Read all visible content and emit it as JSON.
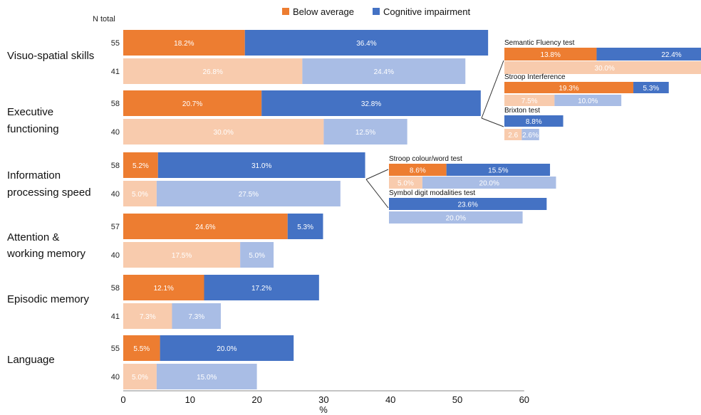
{
  "colors": {
    "below_avg": "#ED7D31",
    "cog_imp": "#4472C4",
    "below_avg_light": "#F8CBAD",
    "cog_imp_light": "#A9BDE5",
    "axis": "#888888"
  },
  "legend": [
    "Below average",
    "Cognitive impairment"
  ],
  "n_total_label": "N total",
  "x_axis_label": "%",
  "x_ticks": [
    "0",
    "10",
    "20",
    "30",
    "40",
    "50",
    "60"
  ],
  "chart_data": {
    "type": "bar",
    "stacked": true,
    "orientation": "horizontal",
    "xlabel": "%",
    "xlim": [
      0,
      60
    ],
    "series_names": [
      "Below average",
      "Cognitive impairment"
    ],
    "domains": [
      {
        "name": "Visuo-spatial skills",
        "rows": [
          {
            "n": "55",
            "below": 18.2,
            "below_label": "18.2%",
            "cog": 36.4,
            "cog_label": "36.4%"
          },
          {
            "n": "41",
            "below": 26.8,
            "below_label": "26.8%",
            "cog": 24.4,
            "cog_label": "24.4%"
          }
        ]
      },
      {
        "name": "Executive functioning",
        "rows": [
          {
            "n": "58",
            "below": 20.7,
            "below_label": "20.7%",
            "cog": 32.8,
            "cog_label": "32.8%"
          },
          {
            "n": "40",
            "below": 30.0,
            "below_label": "30.0%",
            "cog": 12.5,
            "cog_label": "12.5%"
          }
        ]
      },
      {
        "name": "Information processing speed",
        "rows": [
          {
            "n": "58",
            "below": 5.2,
            "below_label": "5.2%",
            "cog": 31.0,
            "cog_label": "31.0%"
          },
          {
            "n": "40",
            "below": 5.0,
            "below_label": "5.0%",
            "cog": 27.5,
            "cog_label": "27.5%"
          }
        ]
      },
      {
        "name": "Attention & working memory",
        "rows": [
          {
            "n": "57",
            "below": 24.6,
            "below_label": "24.6%",
            "cog": 5.3,
            "cog_label": "5.3%"
          },
          {
            "n": "40",
            "below": 17.5,
            "below_label": "17.5%",
            "cog": 5.0,
            "cog_label": "5.0%"
          }
        ]
      },
      {
        "name": "Episodic memory",
        "rows": [
          {
            "n": "58",
            "below": 12.1,
            "below_label": "12.1%",
            "cog": 17.2,
            "cog_label": "17.2%"
          },
          {
            "n": "41",
            "below": 7.3,
            "below_label": "7.3%",
            "cog": 7.3,
            "cog_label": "7.3%"
          }
        ]
      },
      {
        "name": "Language",
        "rows": [
          {
            "n": "55",
            "below": 5.5,
            "below_label": "5.5%",
            "cog": 20.0,
            "cog_label": "20.0%"
          },
          {
            "n": "40",
            "below": 5.0,
            "below_label": "5.0%",
            "cog": 15.0,
            "cog_label": "15.0%"
          }
        ]
      }
    ],
    "insets": [
      {
        "title": "Semantic Fluency test",
        "rows": [
          {
            "below": 13.8,
            "below_label": "13.8%",
            "cog": 22.4,
            "cog_label": "22.4%"
          },
          {
            "below": 30.0,
            "below_label": "30.0%",
            "cog": 0,
            "cog_label": ""
          }
        ]
      },
      {
        "title": "Stroop Interference",
        "rows": [
          {
            "below": 19.3,
            "below_label": "19.3%",
            "cog": 5.3,
            "cog_label": "5.3%"
          },
          {
            "below": 7.5,
            "below_label": "7.5%",
            "cog": 10.0,
            "cog_label": "10.0%"
          }
        ]
      },
      {
        "title": "Brixton test",
        "rows": [
          {
            "below": 0,
            "below_label": "",
            "cog": 8.8,
            "cog_label": "8.8%"
          },
          {
            "below": 2.6,
            "below_label": "2.6",
            "cog": 2.6,
            "cog_label": "2.6%"
          }
        ]
      },
      {
        "title": "Stroop colour/word test",
        "rows": [
          {
            "below": 8.6,
            "below_label": "8.6%",
            "cog": 15.5,
            "cog_label": "15.5%"
          },
          {
            "below": 5.0,
            "below_label": "5.0%",
            "cog": 20.0,
            "cog_label": "20.0%"
          }
        ]
      },
      {
        "title": "Symbol digit modalities test",
        "rows": [
          {
            "below": 0,
            "below_label": "",
            "cog": 23.6,
            "cog_label": "23.6%"
          },
          {
            "below": 0,
            "below_label": "",
            "cog": 20.0,
            "cog_label": "20.0%"
          }
        ]
      }
    ]
  }
}
